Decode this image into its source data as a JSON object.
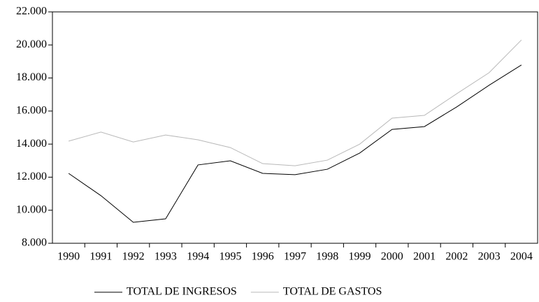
{
  "chart_data": {
    "type": "line",
    "categories": [
      "1990",
      "1991",
      "1992",
      "1993",
      "1994",
      "1995",
      "1996",
      "1997",
      "1998",
      "1999",
      "2000",
      "2001",
      "2002",
      "2003",
      "2004"
    ],
    "series": [
      {
        "name": "TOTAL DE INGRESOS",
        "color": "#000000",
        "values": [
          12230,
          10880,
          9270,
          9480,
          12740,
          12990,
          12230,
          12150,
          12480,
          13460,
          14890,
          15060,
          16250,
          17560,
          18790
        ]
      },
      {
        "name": "TOTAL DE GASTOS",
        "color": "#b8b8b8",
        "values": [
          14180,
          14730,
          14130,
          14550,
          14260,
          13790,
          12820,
          12690,
          13030,
          14000,
          15570,
          15740,
          17050,
          18320,
          20300
        ]
      }
    ],
    "ylim": [
      8000,
      22000
    ],
    "yticks": [
      {
        "value": 8000,
        "label": "8.000"
      },
      {
        "value": 10000,
        "label": "10.000"
      },
      {
        "value": 12000,
        "label": "12.000"
      },
      {
        "value": 14000,
        "label": "14.000"
      },
      {
        "value": 16000,
        "label": "16.000"
      },
      {
        "value": 18000,
        "label": "18.000"
      },
      {
        "value": 20000,
        "label": "20.000"
      },
      {
        "value": 22000,
        "label": "22.000"
      }
    ],
    "legend": "bottom"
  }
}
